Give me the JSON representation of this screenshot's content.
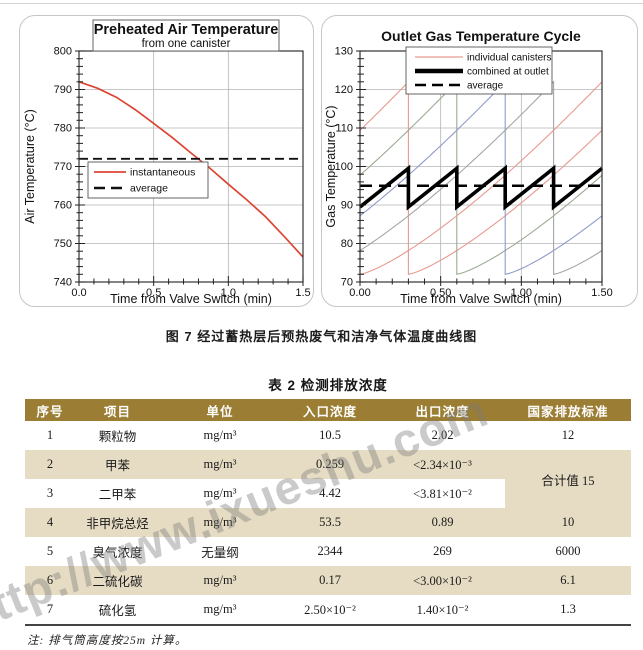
{
  "page": {
    "figure_caption": "图 7  经过蓄热层后预热废气和洁净气体温度曲线图"
  },
  "watermark": {
    "text": "http://www.ixueshu.com"
  },
  "chart_data": [
    {
      "type": "line",
      "title": "Preheated Air Temperature",
      "subtitle": "from one canister",
      "xlabel": "Time from Valve Switch (min)",
      "ylabel": "Air Temperature (°C)",
      "xlim": [
        0,
        1.5
      ],
      "ylim": [
        740,
        800
      ],
      "xticks": [
        0,
        0.5,
        1,
        1.5
      ],
      "xtick_labels": [
        "0.0",
        "0.5",
        "1.0",
        "1.5"
      ],
      "yticks": [
        740,
        750,
        760,
        770,
        780,
        790,
        800
      ],
      "grid": true,
      "legend_position": "middle-left",
      "series": [
        {
          "name": "instantaneous",
          "type": "points",
          "color": "#dc4533",
          "points": [
            [
              0,
              792
            ],
            [
              0.125,
              790.3
            ],
            [
              0.25,
              788
            ],
            [
              0.375,
              784.8
            ],
            [
              0.5,
              781.2
            ],
            [
              0.625,
              777.5
            ],
            [
              0.75,
              773.5
            ],
            [
              0.875,
              769.6
            ],
            [
              1,
              765.4
            ],
            [
              1.125,
              761.3
            ],
            [
              1.25,
              756.9
            ],
            [
              1.375,
              751.8
            ],
            [
              1.5,
              746.5
            ]
          ]
        },
        {
          "name": "average",
          "type": "hline",
          "style": "dashed",
          "color": "#111111",
          "value": 772
        }
      ]
    },
    {
      "type": "line",
      "title": "Outlet Gas Temperature Cycle",
      "subtitle": "",
      "xlabel": "Time from Valve Switch (min)",
      "ylabel": "Gas Temperature (°C)",
      "xlim": [
        0,
        1.5
      ],
      "ylim": [
        70,
        130
      ],
      "xticks": [
        0,
        0.5,
        1,
        1.5
      ],
      "xtick_labels": [
        "0.00",
        "0.50",
        "1.00",
        "1.50"
      ],
      "yticks": [
        70,
        80,
        90,
        100,
        110,
        120,
        130
      ],
      "grid": true,
      "legend_position": "top-center",
      "series": [
        {
          "name": "individual canisters",
          "type": "canisters",
          "min": 72,
          "max": 122,
          "cycle": 1.5,
          "curve_power": 1.3,
          "drops": [
            {
              "t": 0.3,
              "color": "#e69a90"
            },
            {
              "t": 0.6,
              "color": "#9cab94"
            },
            {
              "t": 0.9,
              "color": "#8e9bca"
            },
            {
              "t": 1.2,
              "color": "#a6a6a6"
            },
            {
              "t": 1.5,
              "color": "#e69a90"
            }
          ]
        },
        {
          "name": "combined at outlet",
          "type": "sawtooth",
          "color": "#000000",
          "min": 89.5,
          "max": 99.5,
          "period": 0.3
        },
        {
          "name": "average",
          "type": "hline",
          "style": "dashed",
          "color": "#000000",
          "value": 95
        }
      ]
    }
  ],
  "table": {
    "title": "表 2  检测排放浓度",
    "headers": [
      "序号",
      "项目",
      "单位",
      "入口浓度",
      "出口浓度",
      "国家排放标准"
    ],
    "rows": [
      [
        "1",
        "颗粒物",
        "mg/m³",
        "10.5",
        "2.02",
        "12"
      ],
      [
        "2",
        "甲苯",
        "mg/m³",
        "0.259",
        "<2.34×10⁻³",
        "合计值 15"
      ],
      [
        "3",
        "二甲苯",
        "mg/m³",
        "4.42",
        "<3.81×10⁻²",
        ""
      ],
      [
        "4",
        "非甲烷总烃",
        "mg/m³",
        "53.5",
        "0.89",
        "10"
      ],
      [
        "5",
        "臭气浓度",
        "无量纲",
        "2344",
        "269",
        "6000"
      ],
      [
        "6",
        "二硫化碳",
        "mg/m³",
        "0.17",
        "<3.00×10⁻²",
        "6.1"
      ],
      [
        "7",
        "硫化氢",
        "mg/m³",
        "2.50×10⁻²",
        "1.40×10⁻²",
        "1.3"
      ]
    ],
    "merged_cell": {
      "column": 5,
      "start_row": 1,
      "span": 2,
      "value": "合计值 15"
    },
    "note": "注: 排气筒高度按25m 计算。",
    "colors": {
      "header_bg": "#9b7d33",
      "alt_row_bg": "#e6dcc4"
    }
  }
}
